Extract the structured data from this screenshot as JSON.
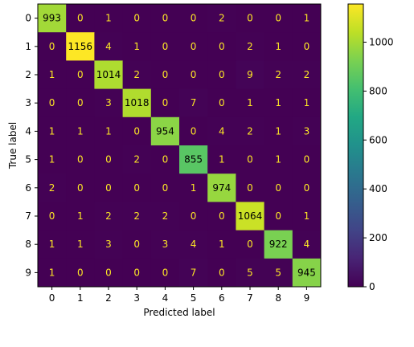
{
  "chart_data": {
    "type": "heatmap",
    "title": "",
    "xlabel": "Predicted label",
    "ylabel": "True label",
    "x_categories": [
      "0",
      "1",
      "2",
      "3",
      "4",
      "5",
      "6",
      "7",
      "8",
      "9"
    ],
    "y_categories": [
      "0",
      "1",
      "2",
      "3",
      "4",
      "5",
      "6",
      "7",
      "8",
      "9"
    ],
    "values": [
      [
        993,
        0,
        1,
        0,
        0,
        0,
        2,
        0,
        0,
        1
      ],
      [
        0,
        1156,
        4,
        1,
        0,
        0,
        0,
        2,
        1,
        0
      ],
      [
        1,
        0,
        1014,
        2,
        0,
        0,
        0,
        9,
        2,
        2
      ],
      [
        0,
        0,
        3,
        1018,
        0,
        7,
        0,
        1,
        1,
        1
      ],
      [
        1,
        1,
        1,
        0,
        954,
        0,
        4,
        2,
        1,
        3
      ],
      [
        1,
        0,
        0,
        2,
        0,
        855,
        1,
        0,
        1,
        0
      ],
      [
        2,
        0,
        0,
        0,
        0,
        1,
        974,
        0,
        0,
        0
      ],
      [
        0,
        1,
        2,
        2,
        2,
        0,
        0,
        1064,
        0,
        1
      ],
      [
        1,
        1,
        3,
        0,
        3,
        4,
        1,
        0,
        922,
        4
      ],
      [
        1,
        0,
        0,
        0,
        0,
        7,
        0,
        5,
        5,
        945
      ]
    ],
    "colormap": "viridis",
    "color_range": [
      0,
      1156
    ],
    "colorbar": {
      "ticks": [
        0,
        200,
        400,
        600,
        800,
        1000
      ]
    },
    "grid": false,
    "text_colors": {
      "low": "#fde725",
      "high": "#000000"
    }
  }
}
